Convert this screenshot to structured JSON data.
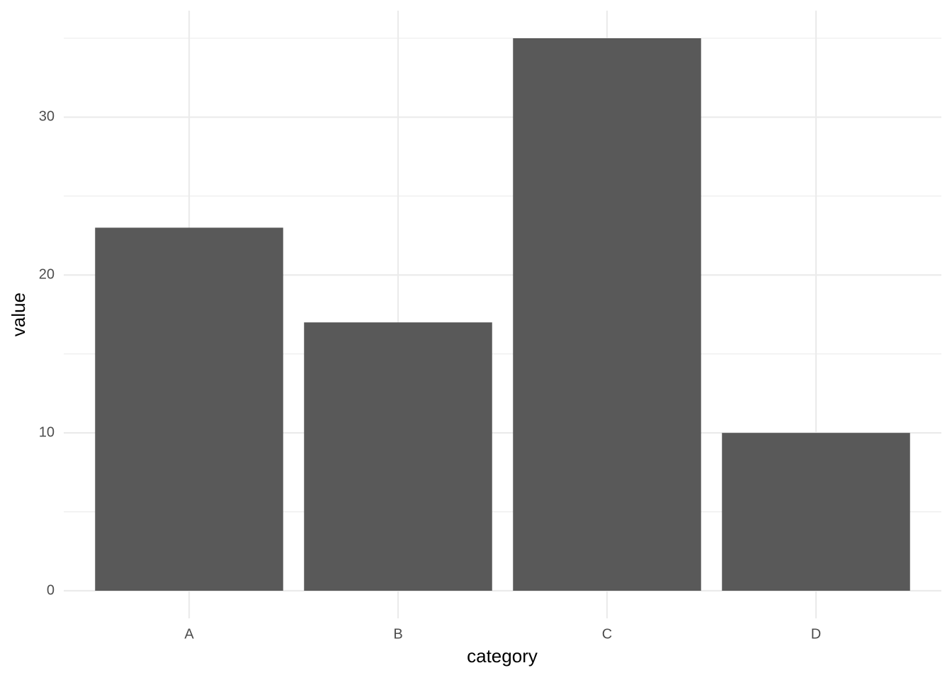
{
  "chart_data": {
    "type": "bar",
    "x_label": "category",
    "y_label": "value",
    "categories": [
      "A",
      "B",
      "C",
      "D"
    ],
    "values": [
      23,
      17,
      35,
      10
    ],
    "color": "#595959",
    "ylim": [
      -1.75,
      36.75
    ],
    "yticks": [
      0,
      10,
      20,
      30
    ],
    "y_minor_ticks": [
      5,
      15,
      25,
      35
    ],
    "grid": true
  }
}
